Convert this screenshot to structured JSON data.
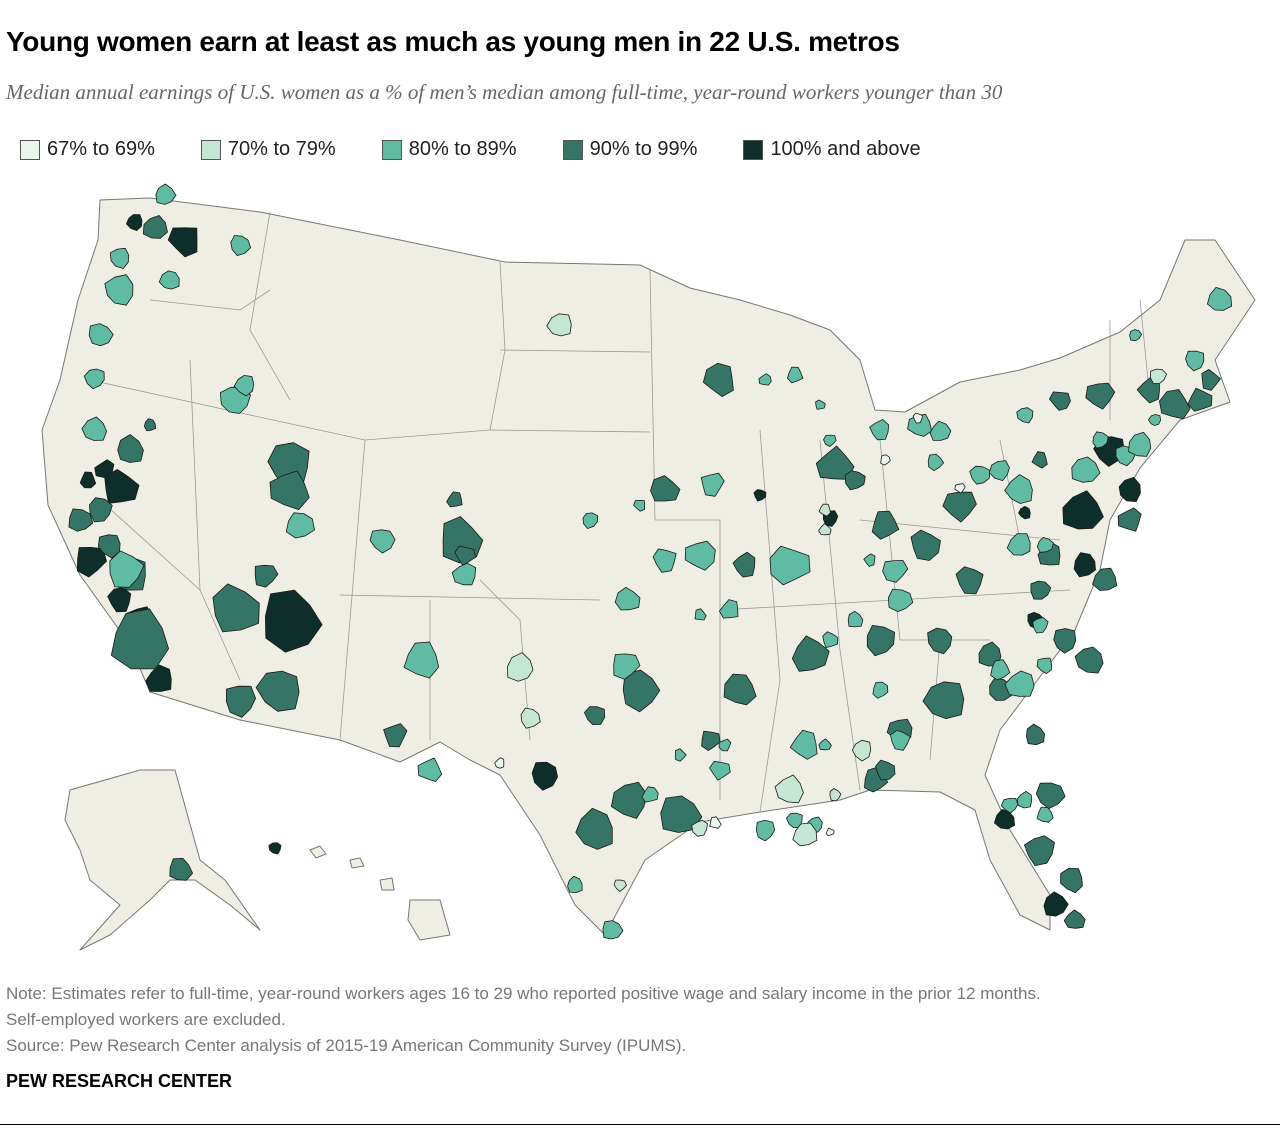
{
  "title": "Young women earn at least as much as young men in 22 U.S. metros",
  "subtitle": "Median annual earnings of U.S. women as a % of men’s median among full-time, year-round workers younger than 30",
  "legend": [
    {
      "label": "67% to 69%",
      "color": "#eaf5ee"
    },
    {
      "label": "70% to 79%",
      "color": "#c5e6d5"
    },
    {
      "label": "80% to 89%",
      "color": "#5fbba1"
    },
    {
      "label": "90% to 99%",
      "color": "#357565"
    },
    {
      "label": "100% and above",
      "color": "#0d2e29"
    }
  ],
  "map": {
    "land_color": "#efeee4",
    "border_color": "#999999",
    "metros_100_and_above_count": 22
  },
  "notes": {
    "note1": "Note: Estimates refer to full-time, year-round workers ages 16 to 29 who reported positive wage and salary income in the prior 12 months.",
    "note2": "Self-employed workers are excluded.",
    "source": "Source: Pew Research Center analysis of 2015-19 American Community Survey (IPUMS)."
  },
  "footer": "PEW RESEARCH CENTER"
}
